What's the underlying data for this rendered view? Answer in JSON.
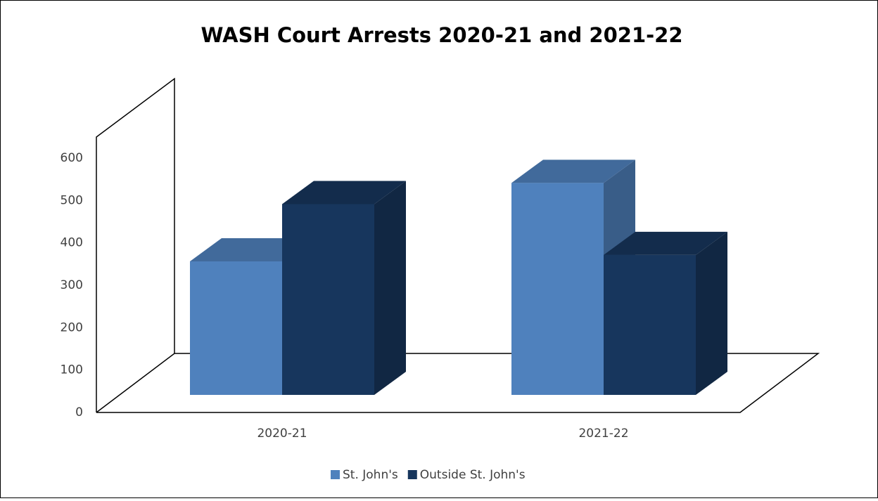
{
  "chart_data": {
    "type": "bar3d",
    "title": "WASH Court Arrests 2020-21 and 2021-22",
    "categories": [
      "2020-21",
      "2021-22"
    ],
    "series": [
      {
        "name": "St. John's",
        "color": "#4f81bd",
        "values": [
          315,
          500
        ]
      },
      {
        "name": "Outside St. John's",
        "color": "#17365d",
        "values": [
          450,
          330
        ]
      }
    ],
    "ylim": [
      0,
      600
    ],
    "yticks": [
      0,
      100,
      200,
      300,
      400,
      500,
      600
    ],
    "legend": "bottom"
  }
}
